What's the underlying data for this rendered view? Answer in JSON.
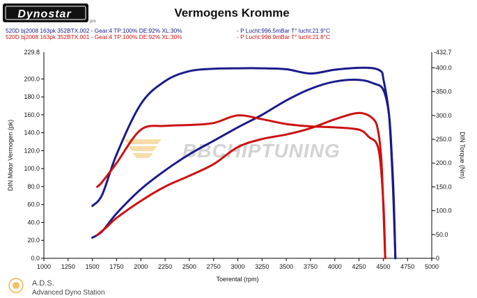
{
  "brand": {
    "logo_text": "Dynostar",
    "logo_sub": "pro"
  },
  "header": {
    "title": "Vermogens Kromme",
    "runs": [
      {
        "label": "520D bj2008 163pk 352BTX.002 - Gear:4 TP:100% DE:92% XL:30%",
        "env": "- P Lucht:996.5mBar T° lucht:21.9°C",
        "color": "#1a1a8c"
      },
      {
        "label": "520D bj2008 163pk 352BTX.001 - Gear:4 TP:100% DE:92% XL:30%",
        "env": "- P Lucht:996.9mBar T° lucht:21.8°C",
        "color": "#cc1111"
      }
    ]
  },
  "watermark": {
    "text": "BBCHIPTUNING"
  },
  "footer": {
    "ads": "A.D.S.",
    "ads_full": "Advanced Dyno Station"
  },
  "chart_data": {
    "type": "line",
    "xlabel": "Toerental (rpm)",
    "ylabel_left": "DIN Motor Vermogen (pk)",
    "ylabel_right": "DIN Torque (Nm)",
    "xlim": [
      1000,
      5000
    ],
    "ylim_left": [
      0,
      229.8
    ],
    "ylim_right": [
      0,
      432.7
    ],
    "x_ticks": [
      1000,
      1250,
      1500,
      1750,
      2000,
      2250,
      2500,
      2750,
      3000,
      3250,
      3500,
      3750,
      4000,
      4250,
      4500,
      4750,
      5000
    ],
    "y_left_ticks": [
      "0.0",
      "20.0",
      "40.0",
      "60.0",
      "80.0",
      "100.0",
      "120.0",
      "140.0",
      "160.0",
      "180.0",
      "200.0"
    ],
    "y_left_top_label": "229.8",
    "y_right_ticks": [
      "-0",
      "-50.0",
      "-100.0",
      "-150.0",
      "-200.0",
      "-250.0",
      "-300.0",
      "-350.0",
      "-400.0"
    ],
    "y_right_top_label": "-432.7",
    "grid": false,
    "series": [
      {
        "name": "520D bj2008 163pk 352BTX.002",
        "quantity": "power",
        "axis": "left",
        "color": "#1a1a8c",
        "points": [
          [
            1500,
            23
          ],
          [
            1600,
            30
          ],
          [
            1750,
            50
          ],
          [
            2000,
            77
          ],
          [
            2250,
            98
          ],
          [
            2500,
            116
          ],
          [
            2750,
            131
          ],
          [
            3000,
            146
          ],
          [
            3250,
            160
          ],
          [
            3500,
            176
          ],
          [
            3750,
            189
          ],
          [
            4000,
            197
          ],
          [
            4250,
            199
          ],
          [
            4400,
            195
          ],
          [
            4500,
            188
          ],
          [
            4560,
            160
          ],
          [
            4590,
            110
          ],
          [
            4610,
            60
          ],
          [
            4625,
            0
          ]
        ]
      },
      {
        "name": "520D bj2008 163pk 352BTX.002",
        "quantity": "torque",
        "axis": "right",
        "color": "#1a1a8c",
        "points": [
          [
            1500,
            110
          ],
          [
            1600,
            133
          ],
          [
            1750,
            218
          ],
          [
            2000,
            324
          ],
          [
            2250,
            372
          ],
          [
            2500,
            393
          ],
          [
            2750,
            398
          ],
          [
            3000,
            399
          ],
          [
            3250,
            399
          ],
          [
            3500,
            397
          ],
          [
            3750,
            388
          ],
          [
            4000,
            396
          ],
          [
            4250,
            400
          ],
          [
            4400,
            399
          ],
          [
            4480,
            392
          ],
          [
            4500,
            378
          ],
          [
            4560,
            300
          ],
          [
            4600,
            150
          ],
          [
            4625,
            0
          ]
        ]
      },
      {
        "name": "520D bj2008 163pk 352BTX.001",
        "quantity": "power",
        "axis": "left",
        "color": "#cc1111",
        "points": [
          [
            1550,
            26
          ],
          [
            1650,
            35
          ],
          [
            1750,
            45
          ],
          [
            2000,
            64
          ],
          [
            2250,
            80
          ],
          [
            2500,
            92
          ],
          [
            2750,
            105
          ],
          [
            3000,
            124
          ],
          [
            3250,
            133
          ],
          [
            3500,
            138
          ],
          [
            3750,
            145
          ],
          [
            4000,
            155
          ],
          [
            4250,
            162
          ],
          [
            4400,
            155
          ],
          [
            4450,
            140
          ],
          [
            4480,
            110
          ],
          [
            4500,
            60
          ],
          [
            4520,
            0
          ]
        ]
      },
      {
        "name": "520D bj2008 163pk 352BTX.001",
        "quantity": "torque",
        "axis": "right",
        "color": "#cc1111",
        "points": [
          [
            1550,
            150
          ],
          [
            1600,
            160
          ],
          [
            1750,
            200
          ],
          [
            2000,
            270
          ],
          [
            2250,
            278
          ],
          [
            2500,
            280
          ],
          [
            2750,
            284
          ],
          [
            3000,
            300
          ],
          [
            3250,
            292
          ],
          [
            3500,
            282
          ],
          [
            3750,
            277
          ],
          [
            4000,
            275
          ],
          [
            4250,
            270
          ],
          [
            4350,
            255
          ],
          [
            4450,
            230
          ],
          [
            4500,
            120
          ],
          [
            4520,
            0
          ]
        ]
      }
    ]
  }
}
